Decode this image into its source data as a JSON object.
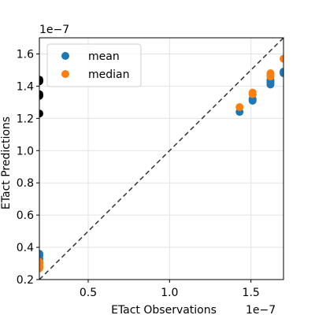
{
  "chart_data": {
    "type": "scatter",
    "xlabel": "ETact Observations",
    "ylabel": "ETact Predictions",
    "x_offset_label": "1e−7",
    "y_offset_label": "1e−7",
    "scale": 1e-07,
    "xlim": [
      0.2,
      1.7
    ],
    "ylim": [
      0.2,
      1.7
    ],
    "xticks": [
      0.5,
      1.0,
      1.5
    ],
    "xtick_labels": [
      "0.5",
      "1.0",
      "1.5"
    ],
    "yticks": [
      0.2,
      0.4,
      0.6,
      0.8,
      1.0,
      1.2,
      1.4,
      1.6
    ],
    "ytick_labels": [
      "0.2",
      "0.4",
      "0.6",
      "0.8",
      "1.0",
      "1.2",
      "1.4",
      "1.6"
    ],
    "grid": true,
    "identity_line": true,
    "legend_position": "upper-left",
    "series": [
      {
        "name": "mean",
        "color": "#1f77b4",
        "x": [
          0.2,
          0.2,
          0.2,
          0.2,
          0.2,
          1.43,
          1.51,
          1.51,
          1.51,
          1.62,
          1.62,
          1.62,
          1.62,
          1.7,
          1.7
        ],
        "y": [
          0.3,
          0.32,
          0.33,
          0.35,
          0.36,
          1.24,
          1.31,
          1.32,
          1.35,
          1.41,
          1.42,
          1.43,
          1.44,
          1.48,
          1.49
        ]
      },
      {
        "name": "median",
        "color": "#ff7f0e",
        "x": [
          0.2,
          0.2,
          0.2,
          0.2,
          1.43,
          1.51,
          1.51,
          1.62,
          1.62,
          1.62,
          1.7
        ],
        "y": [
          0.27,
          0.28,
          0.29,
          0.31,
          1.27,
          1.35,
          1.36,
          1.46,
          1.47,
          1.48,
          1.57
        ]
      },
      {
        "color": "#000000",
        "x": [
          0.2,
          0.2,
          0.2,
          0.2,
          0.2
        ],
        "y": [
          1.23,
          1.34,
          1.35,
          1.43,
          1.44
        ]
      }
    ]
  }
}
